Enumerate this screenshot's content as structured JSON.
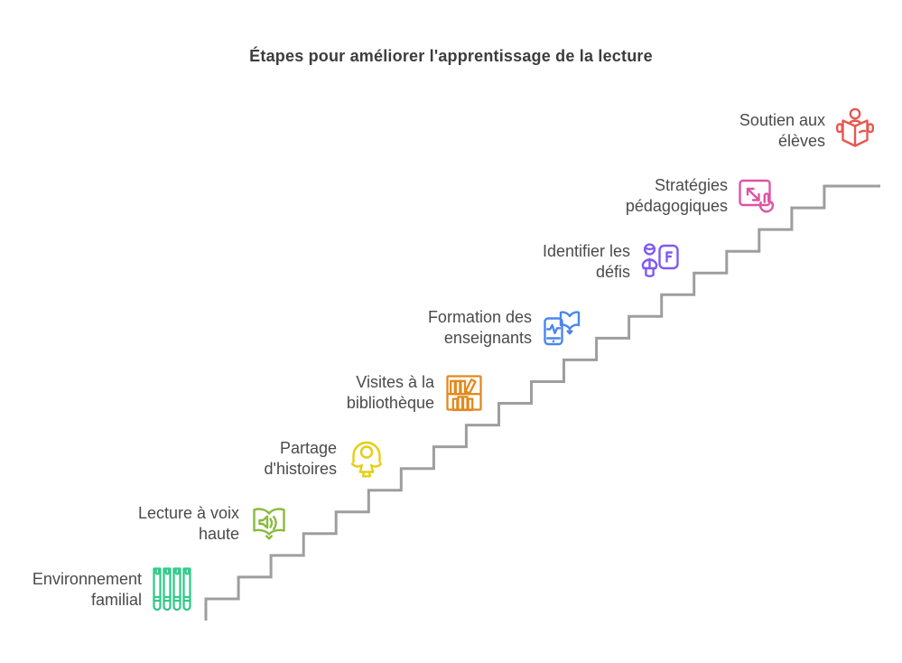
{
  "title": "Étapes pour améliorer l'apprentissage de la lecture",
  "colors": {
    "staircase": "#9e9e9e"
  },
  "steps": [
    {
      "label": "Environnement familial",
      "lines": [
        "Environnement",
        "familial"
      ],
      "icon": "standing-books-icon",
      "color": "#34c98c"
    },
    {
      "label": "Lecture à voix haute",
      "lines": [
        "Lecture à voix",
        "haute"
      ],
      "icon": "audiobook-icon",
      "color": "#88bb3c"
    },
    {
      "label": "Partage d'histoires",
      "lines": [
        "Partage",
        "d'histoires"
      ],
      "icon": "child-icon",
      "color": "#e5ce10"
    },
    {
      "label": "Visites à la bibliothèque",
      "lines": [
        "Visites à la",
        "bibliothèque"
      ],
      "icon": "bookshelf-icon",
      "color": "#e18a1f"
    },
    {
      "label": "Formation des enseignants",
      "lines": [
        "Formation des",
        "enseignants"
      ],
      "icon": "mobile-learning-icon",
      "color": "#4a86ee"
    },
    {
      "label": "Identifier les défis",
      "lines": [
        "Identifier les",
        "défis"
      ],
      "icon": "teacher-board-icon",
      "color": "#7e5bef"
    },
    {
      "label": "Stratégies pédagogiques",
      "lines": [
        "Stratégies",
        "pédagogiques"
      ],
      "icon": "touch-gesture-icon",
      "color": "#dd54a5"
    },
    {
      "label": "Soutien aux élèves",
      "lines": [
        "Soutien aux",
        "élèves"
      ],
      "icon": "person-reading-icon",
      "color": "#e85750"
    }
  ]
}
